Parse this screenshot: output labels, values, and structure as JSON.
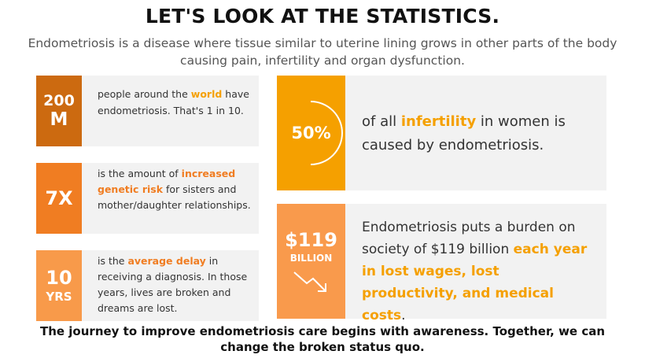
{
  "header": {
    "title": "LET'S LOOK AT THE STATISTICS.",
    "subtitle": "Endometriosis is a disease where tissue similar to uterine lining grows in other parts of the body causing pain, infertility and organ dysfunction."
  },
  "stats_left": [
    {
      "value_line1": "200",
      "value_line2": "M",
      "text_before": "people around the ",
      "highlight": "world",
      "text_after": " have endometriosis. That's 1 in 10.",
      "color": "#cc6a10"
    },
    {
      "value_line1": "7X",
      "value_line2": "",
      "text_before": "is the amount of ",
      "highlight": "increased genetic risk",
      "text_after": " for sisters and mother/daughter relationships.",
      "color": "#f07d22"
    },
    {
      "value_line1": "10",
      "value_line2": "YRS",
      "text_before": "is the ",
      "highlight": "average delay",
      "text_after": " in receiving a diagnosis. In those years, lives are broken and dreams are lost.",
      "color": "#f89a4a"
    }
  ],
  "stats_right": [
    {
      "value_line1": "50%",
      "value_line2": "",
      "text_before": "of all ",
      "highlight": "infertility",
      "text_after": " in women is caused by endometriosis.",
      "color": "#f5a000",
      "icon": "half-circle-icon"
    },
    {
      "value_line1": "$119",
      "value_line2": "BILLION",
      "text_before": "Endometriosis puts a burden on society of $119 billion ",
      "highlight": "each year in lost wages, lost productivity, and medical costs",
      "text_after": ".",
      "color": "#f99a4c",
      "icon": "down-trend-arrow-icon"
    }
  ],
  "colors": {
    "highlight_left": "#f5a000",
    "highlight_orange": "#f07d22",
    "card_bg": "#f2f2f2"
  },
  "footer": {
    "text": "The journey to improve endometriosis care begins with awareness. Together, we can change the broken status quo."
  }
}
